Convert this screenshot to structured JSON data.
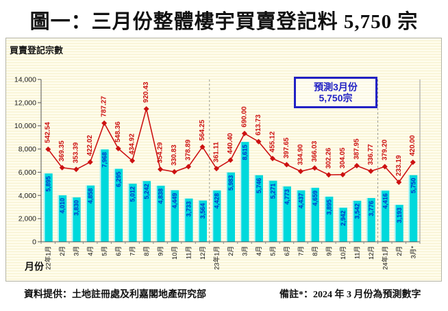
{
  "title": "圖一：三月份整體樓宇買賣登記料 5,750 宗",
  "chart_data": {
    "type": "bar+line",
    "y_axis_title": "買賣登記宗數",
    "x_axis_title": "月份",
    "ylim": [
      0,
      14000
    ],
    "yticks": [
      0,
      2000,
      4000,
      6000,
      8000,
      10000,
      12000,
      14000
    ],
    "ytick_labels": [
      "0",
      "2,000",
      "4,000",
      "6,000",
      "8,000",
      "10,000",
      "12,000",
      "14,000"
    ],
    "categories": [
      "22年1月",
      "2月",
      "3月",
      "4月",
      "5月",
      "6月",
      "7月",
      "8月",
      "9月",
      "10月",
      "11月",
      "12月",
      "23年1月",
      "2月",
      "3月",
      "4月",
      "5月",
      "6月",
      "7月",
      "8月",
      "9月",
      "10月",
      "11月",
      "12月",
      "24年1月",
      "2月",
      "3月*"
    ],
    "series": [
      {
        "name": "bars",
        "type": "bar",
        "color": "#00d9dc",
        "label_color": "#0033cc",
        "values": [
          5895,
          4010,
          3830,
          4858,
          7968,
          6295,
          5012,
          5242,
          4838,
          4449,
          3733,
          3564,
          4428,
          5983,
          8615,
          5746,
          5271,
          4773,
          4437,
          4659,
          3895,
          2942,
          3542,
          3776,
          4416,
          3193,
          5750
        ]
      },
      {
        "name": "line",
        "type": "line",
        "color": "#cc1111",
        "values": [
          542.54,
          369.35,
          353.39,
          422.02,
          787.27,
          548.36,
          434.92,
          920.43,
          354.29,
          330.83,
          378.89,
          564.25,
          361.11,
          440.4,
          690.0,
          613.73,
          455.12,
          397.65,
          334.9,
          366.03,
          302.26,
          304.05,
          387.95,
          336.77,
          379.2,
          233.19,
          420.0
        ]
      }
    ],
    "separators_after_index": [
      11,
      23
    ],
    "annotation": {
      "line1": "預測3月份",
      "line2": "5,750宗"
    },
    "grid": "off",
    "legend": "none"
  },
  "footer": {
    "source": "資料提供：土地註冊處及利嘉閣地產研究部",
    "note": "備註*：2024 年 3 月份為預測數字"
  }
}
